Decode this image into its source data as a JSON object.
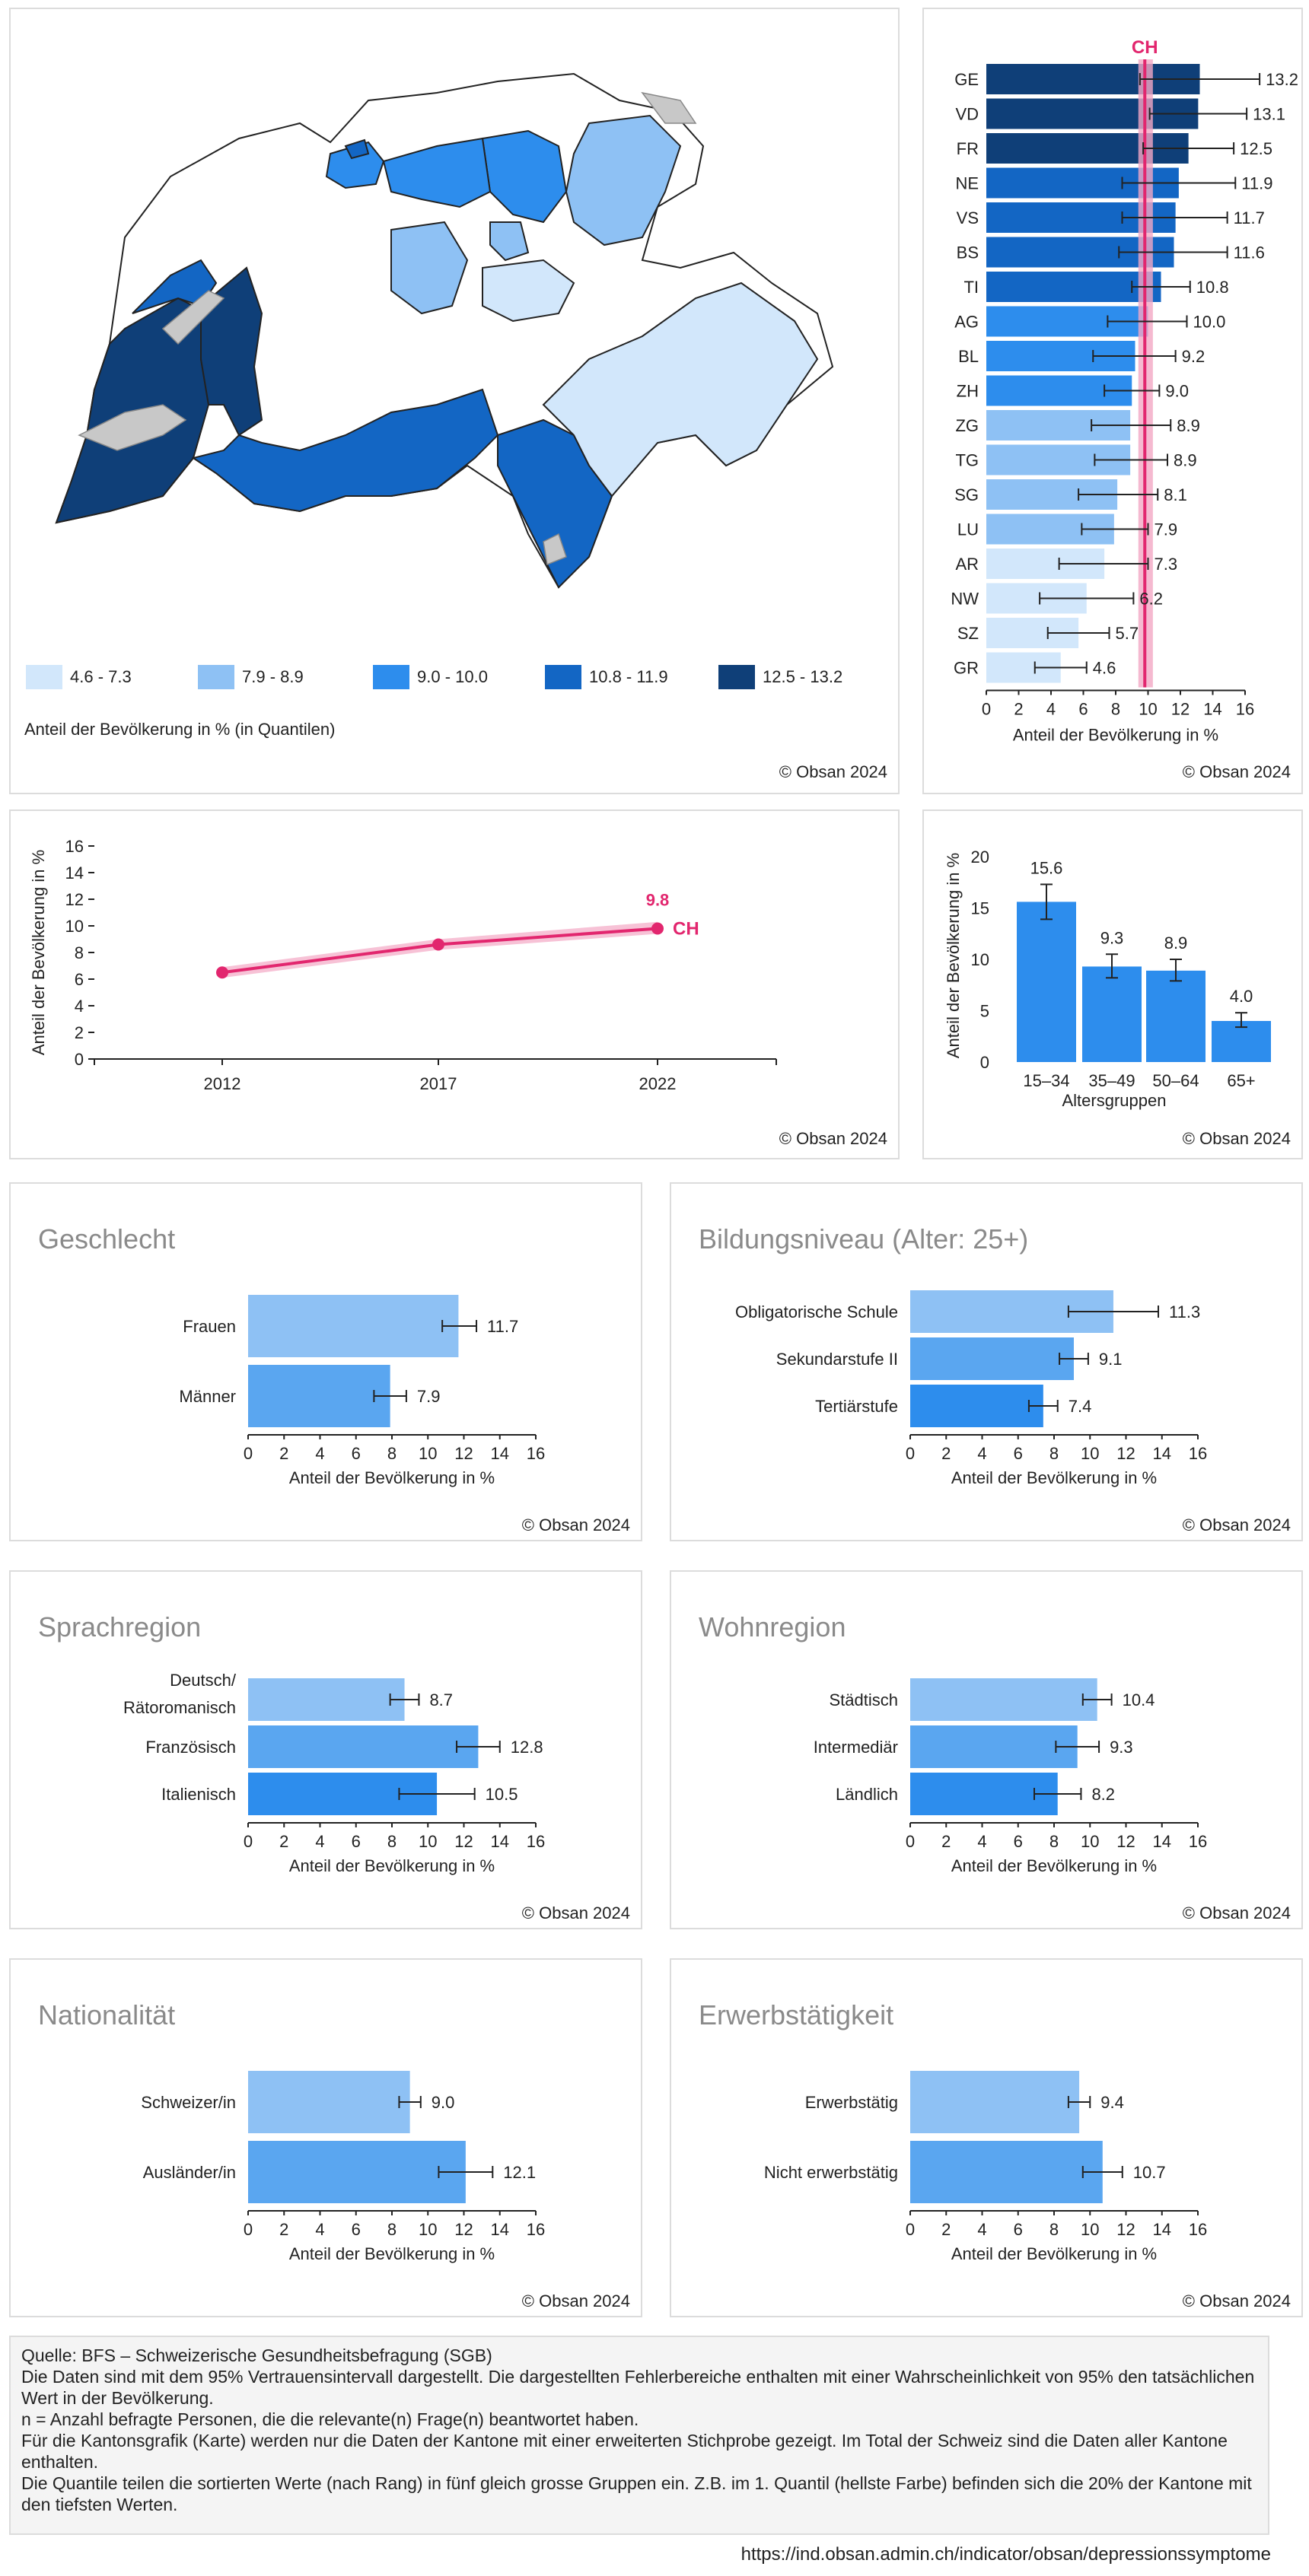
{
  "colors": {
    "q1": "#d2e7fb",
    "q2": "#8ec1f4",
    "q3": "#2d8ded",
    "q4": "#1366c4",
    "q5": "#0f3f78",
    "ch": "#e2266e",
    "ch_band": "#f3a8c4",
    "bar_light": "#8ec1f4",
    "bar_mid": "#5aa6f0",
    "bar_dark": "#2d8ded"
  },
  "map": {
    "legend_title": "Anteil der Bevölkerung in % (in Quantilen)",
    "legend": [
      {
        "label": "4.6 - 7.3",
        "color": "#d2e7fb"
      },
      {
        "label": "7.9 - 8.9",
        "color": "#8ec1f4"
      },
      {
        "label": "9.0 - 10.0",
        "color": "#2d8ded"
      },
      {
        "label": "10.8 - 11.9",
        "color": "#1366c4"
      },
      {
        "label": "12.5 - 13.2",
        "color": "#0f3f78"
      }
    ],
    "copyright": "© Obsan 2024"
  },
  "cantons": {
    "ch_label": "CH",
    "ch_value": 9.8,
    "ch_low": 9.4,
    "ch_high": 10.3,
    "xlabel": "Anteil der Bevölkerung in %",
    "ticks": [
      "0",
      "2",
      "4",
      "6",
      "8",
      "10",
      "12",
      "14",
      "16"
    ],
    "copyright": "© Obsan 2024"
  },
  "trend": {
    "ylabel": "Anteil der Bevölkerung in %",
    "yticks": [
      "0",
      "2",
      "4",
      "6",
      "8",
      "10",
      "12",
      "14",
      "16"
    ],
    "series_label": "CH",
    "last_label": "9.8",
    "copyright": "© Obsan 2024"
  },
  "age": {
    "ylabel": "Anteil der Bevölkerung in %",
    "xlabel": "Altersgruppen",
    "yticks": [
      "0",
      "5",
      "10",
      "15",
      "20"
    ],
    "copyright": "© Obsan 2024"
  },
  "panels": {
    "geschlecht": {
      "title": "Geschlecht",
      "xlabel": "Anteil der Bevölkerung in %",
      "copyright": "© Obsan 2024"
    },
    "bildung": {
      "title": "Bildungsniveau (Alter: 25+)",
      "xlabel": "Anteil der Bevölkerung in %",
      "copyright": "© Obsan 2024"
    },
    "sprache": {
      "title": "Sprachregion",
      "xlabel": "Anteil der Bevölkerung in %",
      "copyright": "© Obsan 2024"
    },
    "wohn": {
      "title": "Wohnregion",
      "xlabel": "Anteil der Bevölkerung in %",
      "copyright": "© Obsan 2024"
    },
    "nation": {
      "title": "Nationalität",
      "xlabel": "Anteil der Bevölkerung in %",
      "copyright": "© Obsan 2024"
    },
    "erwerb": {
      "title": "Erwerbstätigkeit",
      "xlabel": "Anteil der Bevölkerung in %",
      "copyright": "© Obsan 2024"
    },
    "ticks": [
      "0",
      "2",
      "4",
      "6",
      "8",
      "10",
      "12",
      "14",
      "16"
    ]
  },
  "chart_data": [
    {
      "id": "cantons",
      "type": "bar",
      "orientation": "horizontal",
      "categories": [
        "GE",
        "VD",
        "FR",
        "NE",
        "VS",
        "BS",
        "TI",
        "AG",
        "BL",
        "ZH",
        "ZG",
        "TG",
        "SG",
        "LU",
        "AR",
        "NW",
        "SZ",
        "GR"
      ],
      "values": [
        13.2,
        13.1,
        12.5,
        11.9,
        11.7,
        11.6,
        10.8,
        10.0,
        9.2,
        9.0,
        8.9,
        8.9,
        8.1,
        7.9,
        7.3,
        6.2,
        5.7,
        4.6
      ],
      "labels": [
        "13.2",
        "13.1",
        "12.5",
        "11.9",
        "11.7",
        "11.6",
        "10.8",
        "10.0",
        "9.2",
        "9.0",
        "8.9",
        "8.9",
        "8.1",
        "7.9",
        "7.3",
        "6.2",
        "5.7",
        "4.6"
      ],
      "low": [
        9.5,
        10.1,
        9.7,
        8.4,
        8.4,
        8.2,
        9.0,
        7.5,
        6.6,
        7.3,
        6.5,
        6.7,
        5.7,
        5.9,
        4.5,
        3.3,
        3.8,
        3.0
      ],
      "high": [
        16.9,
        16.1,
        15.3,
        15.4,
        14.9,
        14.9,
        12.6,
        12.4,
        11.7,
        10.7,
        11.4,
        11.2,
        10.6,
        10.0,
        10.0,
        9.1,
        7.6,
        6.2
      ],
      "colors": [
        "#0f3f78",
        "#0f3f78",
        "#0f3f78",
        "#1366c4",
        "#1366c4",
        "#1366c4",
        "#1366c4",
        "#2d8ded",
        "#2d8ded",
        "#2d8ded",
        "#8ec1f4",
        "#8ec1f4",
        "#8ec1f4",
        "#8ec1f4",
        "#d2e7fb",
        "#d2e7fb",
        "#d2e7fb",
        "#d2e7fb"
      ],
      "xlim": [
        0,
        16
      ],
      "xlabel": "Anteil der Bevölkerung in %"
    },
    {
      "id": "trend",
      "type": "line",
      "x": [
        "2012",
        "2017",
        "2022"
      ],
      "values": [
        6.5,
        8.6,
        9.8
      ],
      "low": [
        6.1,
        8.2,
        9.4
      ],
      "high": [
        6.9,
        9.0,
        10.3
      ],
      "ylim": [
        0,
        16
      ],
      "ylabel": "Anteil der Bevölkerung in %",
      "series": "CH"
    },
    {
      "id": "age",
      "type": "bar",
      "categories": [
        "15–34",
        "35–49",
        "50–64",
        "65+"
      ],
      "values": [
        15.6,
        9.3,
        8.9,
        4.0
      ],
      "labels": [
        "15.6",
        "9.3",
        "8.9",
        "4.0"
      ],
      "low": [
        13.9,
        8.2,
        7.9,
        3.4
      ],
      "high": [
        17.3,
        10.5,
        10.0,
        4.8
      ],
      "ylim": [
        0,
        20
      ],
      "xlabel": "Altersgruppen",
      "ylabel": "Anteil der Bevölkerung in %"
    },
    {
      "id": "geschlecht",
      "type": "bar",
      "orientation": "horizontal",
      "categories": [
        [
          "Frauen"
        ],
        [
          "Männer"
        ]
      ],
      "values": [
        11.7,
        7.9
      ],
      "labels": [
        "11.7",
        "7.9"
      ],
      "low": [
        10.8,
        7.0
      ],
      "high": [
        12.7,
        8.8
      ],
      "xlim": [
        0,
        16
      ]
    },
    {
      "id": "bildung",
      "type": "bar",
      "orientation": "horizontal",
      "categories": [
        [
          "Obligatorische Schule"
        ],
        [
          "Sekundarstufe II"
        ],
        [
          "Tertiärstufe"
        ]
      ],
      "values": [
        11.3,
        9.1,
        7.4
      ],
      "labels": [
        "11.3",
        "9.1",
        "7.4"
      ],
      "low": [
        8.8,
        8.3,
        6.6
      ],
      "high": [
        13.8,
        9.9,
        8.2
      ],
      "xlim": [
        0,
        16
      ]
    },
    {
      "id": "sprache",
      "type": "bar",
      "orientation": "horizontal",
      "categories": [
        [
          "Deutsch/",
          "Rätoromanisch"
        ],
        [
          "Französisch"
        ],
        [
          "Italienisch"
        ]
      ],
      "values": [
        8.7,
        12.8,
        10.5
      ],
      "labels": [
        "8.7",
        "12.8",
        "10.5"
      ],
      "low": [
        7.9,
        11.6,
        8.4
      ],
      "high": [
        9.5,
        14.0,
        12.6
      ],
      "xlim": [
        0,
        16
      ]
    },
    {
      "id": "wohn",
      "type": "bar",
      "orientation": "horizontal",
      "categories": [
        [
          "Städtisch"
        ],
        [
          "Intermediär"
        ],
        [
          "Ländlich"
        ]
      ],
      "values": [
        10.4,
        9.3,
        8.2
      ],
      "labels": [
        "10.4",
        "9.3",
        "8.2"
      ],
      "low": [
        9.6,
        8.1,
        6.9
      ],
      "high": [
        11.2,
        10.5,
        9.5
      ],
      "xlim": [
        0,
        16
      ]
    },
    {
      "id": "nation",
      "type": "bar",
      "orientation": "horizontal",
      "categories": [
        [
          "Schweizer/in"
        ],
        [
          "Ausländer/in"
        ]
      ],
      "values": [
        9.0,
        12.1
      ],
      "labels": [
        "9.0",
        "12.1"
      ],
      "low": [
        8.4,
        10.6
      ],
      "high": [
        9.6,
        13.6
      ],
      "xlim": [
        0,
        16
      ]
    },
    {
      "id": "erwerb",
      "type": "bar",
      "orientation": "horizontal",
      "categories": [
        [
          "Erwerbstätig"
        ],
        [
          "Nicht erwerbstätig"
        ]
      ],
      "values": [
        9.4,
        10.7
      ],
      "labels": [
        "9.4",
        "10.7"
      ],
      "low": [
        8.8,
        9.6
      ],
      "high": [
        10.0,
        11.8
      ],
      "xlim": [
        0,
        16
      ]
    }
  ],
  "footer": {
    "lines": [
      "Quelle: BFS – Schweizerische Gesundheitsbefragung (SGB)",
      "Die Daten sind mit dem 95% Vertrauensintervall dargestellt. Die dargestellten Fehlerbereiche enthalten mit einer Wahrscheinlichkeit von 95% den tatsächlichen Wert in der Bevölkerung.",
      "n = Anzahl befragte Personen, die die relevante(n) Frage(n) beantwortet haben.",
      "Für die Kantonsgrafik (Karte) werden nur die Daten der Kantone mit einer erweiterten Stichprobe gezeigt. Im Total der Schweiz sind die Daten aller Kantone enthalten.",
      "Die Quantile teilen die sortierten Werte (nach Rang) in fünf gleich grosse Gruppen ein. Z.B. im 1. Quantil (hellste Farbe) befinden sich die 20% der Kantone mit den tiefsten Werten."
    ],
    "url": "https://ind.obsan.admin.ch/indicator/obsan/depressionssymptome"
  }
}
